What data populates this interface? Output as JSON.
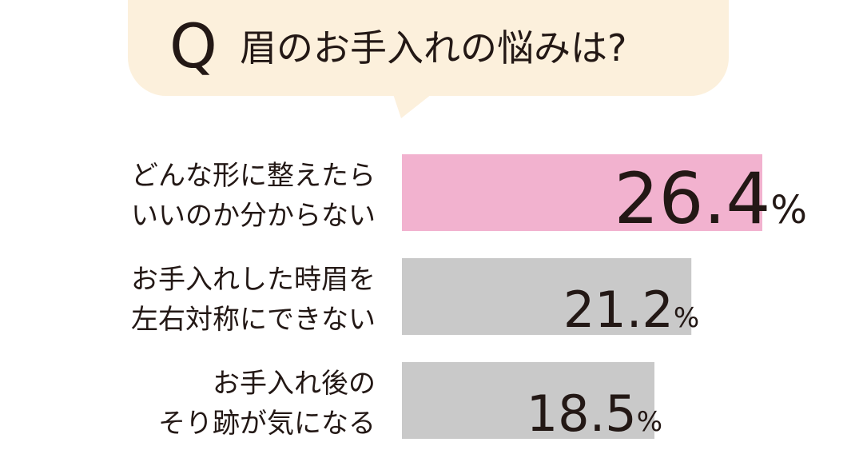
{
  "question": {
    "mark": "Q",
    "text": "眉のお手入れの悩みは?"
  },
  "colors": {
    "bubble": "#fcf0dc",
    "highlight_bar": "#f2b2cf",
    "default_bar": "#c9c9c9",
    "text": "#231815"
  },
  "chart_data": {
    "type": "bar",
    "orientation": "horizontal",
    "unit": "%",
    "categories": [
      [
        "どんな形に整えたら",
        "いいのか分からない"
      ],
      [
        "お手入れした時眉を",
        "左右対称にできない"
      ],
      [
        "お手入れ後の",
        "そり跡が気になる"
      ]
    ],
    "values": [
      26.4,
      21.2,
      18.5
    ],
    "value_labels": [
      "26.4",
      "21.2",
      "18.5"
    ],
    "highlight_index": 0
  }
}
